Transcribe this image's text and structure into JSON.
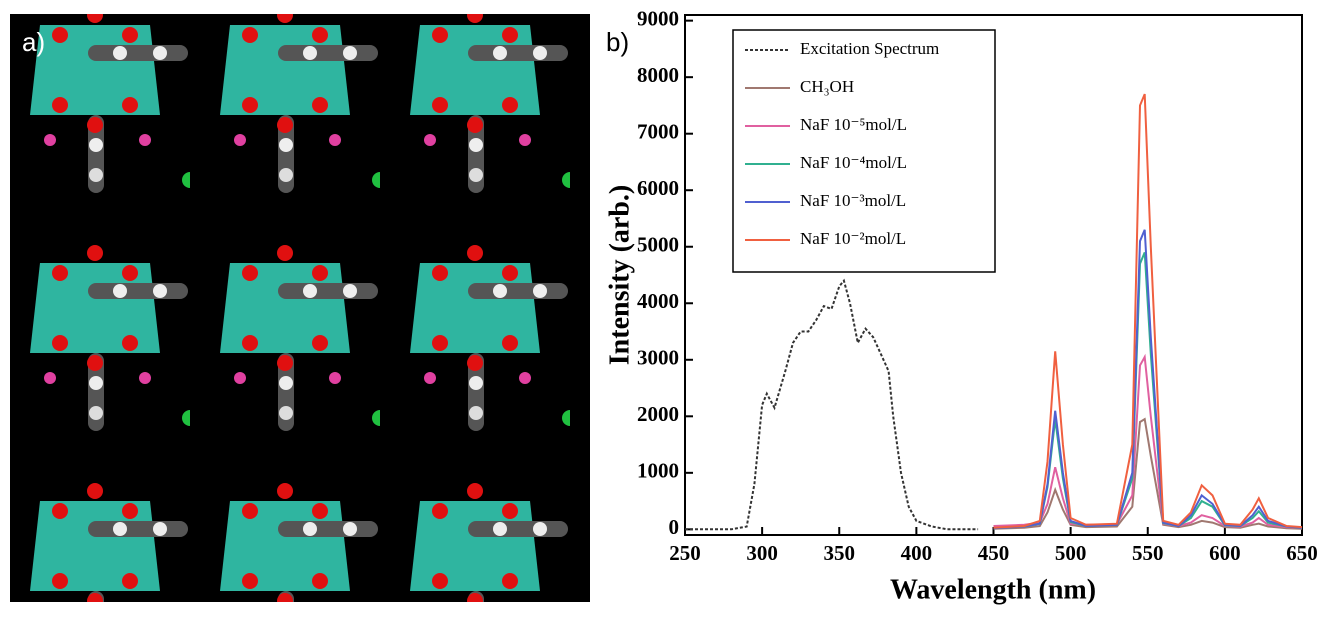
{
  "panel_labels": [
    "a)",
    "b)"
  ],
  "chart_data": {
    "type": "line",
    "x_label": "Wavelength (nm)",
    "y_label": "Intensity (arb.)",
    "xlim": [
      250,
      650
    ],
    "xticks": [
      250,
      300,
      350,
      400,
      450,
      500,
      550,
      600,
      650
    ],
    "ylim": [
      -100,
      9100
    ],
    "yticks": [
      0,
      1000,
      2000,
      3000,
      4000,
      5000,
      6000,
      7000,
      8000,
      9000
    ],
    "grid": false,
    "legend": "upper left",
    "series": [
      {
        "name": "Excitation Spectrum",
        "color": "#333333",
        "dashed": true,
        "x": [
          250,
          280,
          290,
          295,
          300,
          303,
          308,
          315,
          320,
          325,
          330,
          335,
          340,
          345,
          350,
          353,
          357,
          362,
          367,
          372,
          377,
          382,
          385,
          390,
          395,
          400,
          410,
          420,
          440
        ],
        "values": [
          0,
          0,
          50,
          800,
          2200,
          2400,
          2150,
          2800,
          3300,
          3500,
          3500,
          3700,
          3950,
          3900,
          4300,
          4400,
          4000,
          3300,
          3550,
          3400,
          3100,
          2800,
          2000,
          1000,
          400,
          150,
          50,
          0,
          0
        ]
      },
      {
        "name": "CH₃OH",
        "color": "#a07870",
        "x": [
          450,
          470,
          480,
          485,
          490,
          495,
          500,
          510,
          530,
          540,
          545,
          548,
          552,
          560,
          570,
          578,
          585,
          592,
          600,
          610,
          618,
          622,
          628,
          640,
          650
        ],
        "values": [
          10,
          30,
          60,
          300,
          700,
          350,
          80,
          40,
          50,
          400,
          1900,
          1950,
          1300,
          80,
          40,
          80,
          150,
          120,
          40,
          30,
          80,
          100,
          50,
          20,
          10
        ]
      },
      {
        "name": "NaF 10⁻⁵mol/L",
        "color": "#e060a0",
        "x": [
          450,
          470,
          480,
          485,
          490,
          495,
          500,
          510,
          530,
          540,
          545,
          548,
          552,
          560,
          570,
          578,
          585,
          592,
          600,
          610,
          618,
          622,
          628,
          640,
          650
        ],
        "values": [
          60,
          80,
          120,
          450,
          1100,
          550,
          100,
          80,
          90,
          600,
          2900,
          3050,
          2000,
          100,
          60,
          120,
          250,
          200,
          60,
          50,
          120,
          200,
          80,
          40,
          30
        ]
      },
      {
        "name": "NaF 10⁻⁴mol/L",
        "color": "#30b090",
        "x": [
          450,
          470,
          480,
          485,
          490,
          495,
          500,
          510,
          530,
          540,
          545,
          548,
          552,
          560,
          570,
          578,
          585,
          592,
          600,
          610,
          618,
          622,
          628,
          640,
          650
        ],
        "values": [
          20,
          50,
          100,
          750,
          1950,
          900,
          130,
          60,
          80,
          900,
          4700,
          4900,
          3100,
          110,
          60,
          200,
          500,
          400,
          70,
          60,
          200,
          320,
          120,
          50,
          30
        ]
      },
      {
        "name": "NaF 10⁻³mol/L",
        "color": "#5060d0",
        "x": [
          450,
          470,
          480,
          485,
          490,
          495,
          500,
          510,
          530,
          540,
          545,
          548,
          552,
          560,
          570,
          578,
          585,
          592,
          600,
          610,
          618,
          622,
          628,
          640,
          650
        ],
        "values": [
          20,
          50,
          100,
          800,
          2100,
          1000,
          150,
          60,
          80,
          1000,
          5100,
          5300,
          3400,
          120,
          60,
          250,
          600,
          450,
          80,
          60,
          250,
          400,
          150,
          50,
          30
        ]
      },
      {
        "name": "NaF 10⁻²mol/L",
        "color": "#f06040",
        "x": [
          450,
          470,
          480,
          485,
          490,
          495,
          500,
          510,
          530,
          540,
          545,
          548,
          552,
          560,
          570,
          578,
          585,
          592,
          600,
          610,
          618,
          622,
          628,
          640,
          650
        ],
        "values": [
          30,
          60,
          150,
          1200,
          3150,
          1500,
          200,
          80,
          100,
          1500,
          7500,
          7700,
          5000,
          150,
          80,
          300,
          780,
          600,
          100,
          80,
          350,
          550,
          200,
          60,
          40
        ]
      }
    ]
  }
}
